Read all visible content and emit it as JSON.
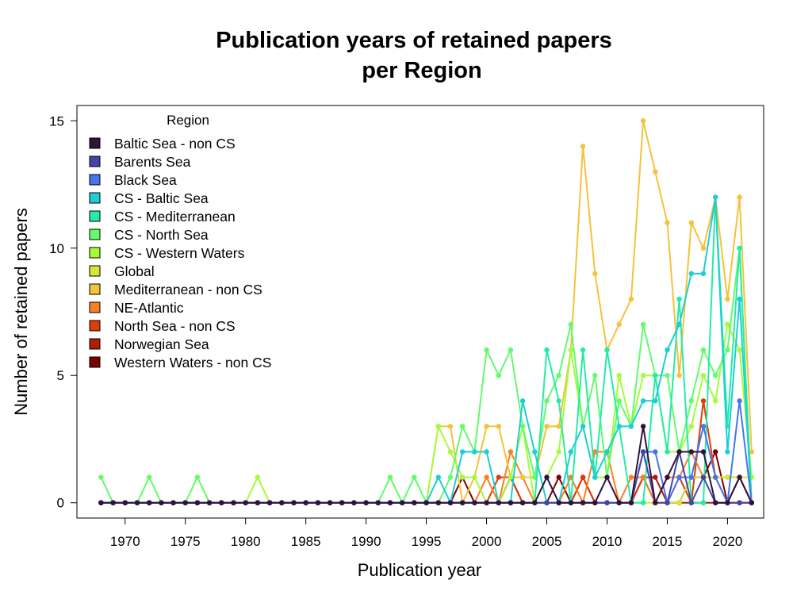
{
  "chart_data": {
    "type": "line",
    "title_lines": [
      "Publication years of retained papers",
      "per Region"
    ],
    "xlabel": "Publication year",
    "ylabel": "Number of retained papers",
    "xlim": [
      1966,
      2023
    ],
    "ylim": [
      -0.6,
      15.6
    ],
    "x_ticks": [
      1970,
      1975,
      1980,
      1985,
      1990,
      1995,
      2000,
      2005,
      2010,
      2015,
      2020
    ],
    "y_ticks": [
      0,
      5,
      10,
      15
    ],
    "grid": false,
    "legend": {
      "title": "Region",
      "position": "top-left"
    },
    "x": [
      1968,
      1969,
      1970,
      1971,
      1972,
      1973,
      1974,
      1975,
      1976,
      1977,
      1978,
      1979,
      1980,
      1981,
      1982,
      1983,
      1984,
      1985,
      1986,
      1987,
      1988,
      1989,
      1990,
      1991,
      1992,
      1993,
      1994,
      1995,
      1996,
      1997,
      1998,
      1999,
      2000,
      2001,
      2002,
      2003,
      2004,
      2005,
      2006,
      2007,
      2008,
      2009,
      2010,
      2011,
      2012,
      2013,
      2014,
      2015,
      2016,
      2017,
      2018,
      2019,
      2020,
      2021,
      2022
    ],
    "series": [
      {
        "name": "Baltic Sea - non CS",
        "color": "#30123b",
        "values": [
          0,
          0,
          0,
          0,
          0,
          0,
          0,
          0,
          0,
          0,
          0,
          0,
          0,
          0,
          0,
          0,
          0,
          0,
          0,
          0,
          0,
          0,
          0,
          0,
          0,
          0,
          0,
          0,
          0,
          0,
          0,
          0,
          0,
          0,
          0,
          0,
          0,
          1,
          0,
          0,
          0,
          0,
          1,
          0,
          0,
          3,
          0,
          1,
          2,
          2,
          2,
          0,
          0,
          1,
          0
        ]
      },
      {
        "name": "Barents Sea",
        "color": "#4145ab",
        "values": [
          0,
          0,
          0,
          0,
          0,
          0,
          0,
          0,
          0,
          0,
          0,
          0,
          0,
          0,
          0,
          0,
          0,
          0,
          0,
          0,
          0,
          0,
          0,
          0,
          0,
          0,
          0,
          0,
          0,
          0,
          0,
          0,
          0,
          0,
          0,
          0,
          0,
          0,
          0,
          0,
          0,
          0,
          0,
          0,
          0,
          2,
          0,
          0,
          2,
          0,
          1,
          0,
          0,
          0,
          0
        ]
      },
      {
        "name": "Black Sea",
        "color": "#4675ed",
        "values": [
          0,
          0,
          0,
          0,
          0,
          0,
          0,
          0,
          0,
          0,
          0,
          0,
          0,
          0,
          0,
          0,
          0,
          0,
          0,
          0,
          0,
          0,
          0,
          0,
          0,
          0,
          0,
          0,
          0,
          0,
          0,
          0,
          0,
          0,
          0,
          0,
          0,
          0,
          0,
          0,
          0,
          0,
          0,
          0,
          0,
          2,
          2,
          0,
          1,
          1,
          3,
          1,
          0,
          4,
          0
        ]
      },
      {
        "name": "CS - Baltic Sea",
        "color": "#1bcfd4",
        "values": [
          0,
          0,
          0,
          0,
          0,
          0,
          0,
          0,
          0,
          0,
          0,
          0,
          0,
          0,
          0,
          0,
          0,
          0,
          0,
          0,
          0,
          0,
          0,
          0,
          0,
          0,
          0,
          0,
          1,
          0,
          2,
          2,
          2,
          0,
          0,
          4,
          2,
          0,
          0,
          2,
          3,
          1,
          2,
          3,
          3,
          4,
          4,
          6,
          7,
          9,
          9,
          12,
          2,
          8,
          0
        ]
      },
      {
        "name": "CS - Mediterranean",
        "color": "#24eca6",
        "values": [
          0,
          0,
          0,
          0,
          0,
          0,
          0,
          0,
          0,
          0,
          0,
          0,
          0,
          0,
          0,
          0,
          0,
          0,
          0,
          0,
          0,
          0,
          0,
          0,
          0,
          0,
          0,
          0,
          0,
          0,
          0,
          0,
          0,
          0,
          0,
          0,
          0,
          6,
          4,
          0,
          6,
          1,
          6,
          3,
          0,
          0,
          5,
          2,
          8,
          0,
          0,
          12,
          3,
          10,
          0
        ]
      },
      {
        "name": "CS - North Sea",
        "color": "#61fc6c",
        "values": [
          1,
          0,
          0,
          0,
          1,
          0,
          0,
          0,
          1,
          0,
          0,
          0,
          0,
          0,
          0,
          0,
          0,
          0,
          0,
          0,
          0,
          0,
          0,
          0,
          1,
          0,
          1,
          0,
          0,
          1,
          3,
          2,
          6,
          5,
          6,
          3,
          1,
          4,
          5,
          7,
          3,
          5,
          1,
          4,
          3,
          7,
          5,
          5,
          2,
          4,
          6,
          5,
          6,
          10,
          0
        ]
      },
      {
        "name": "CS - Western Waters",
        "color": "#a4fc3b",
        "values": [
          0,
          0,
          0,
          0,
          0,
          0,
          0,
          0,
          0,
          0,
          0,
          0,
          0,
          1,
          0,
          0,
          0,
          0,
          0,
          0,
          0,
          0,
          0,
          0,
          0,
          0,
          0,
          0,
          3,
          2,
          1,
          1,
          0,
          0,
          1,
          3,
          0,
          1,
          2,
          6,
          3,
          1,
          1,
          5,
          3,
          5,
          5,
          2,
          2,
          3,
          5,
          4,
          7,
          6,
          1
        ]
      },
      {
        "name": "Global",
        "color": "#d1e834",
        "values": [
          0,
          0,
          0,
          0,
          0,
          0,
          0,
          0,
          0,
          0,
          0,
          0,
          0,
          0,
          0,
          0,
          0,
          0,
          0,
          0,
          0,
          0,
          0,
          0,
          0,
          0,
          0,
          0,
          0,
          0,
          0,
          0,
          0,
          0,
          0,
          0,
          0,
          0,
          0,
          0,
          0,
          0,
          0,
          0,
          0,
          0,
          0,
          0,
          0,
          1,
          1,
          1,
          1,
          1,
          1
        ]
      },
      {
        "name": "Mediterranean - non CS",
        "color": "#f6c23a",
        "values": [
          0,
          0,
          0,
          0,
          0,
          0,
          0,
          0,
          0,
          0,
          0,
          0,
          0,
          0,
          0,
          0,
          0,
          0,
          0,
          0,
          0,
          0,
          0,
          0,
          0,
          0,
          0,
          0,
          3,
          3,
          0,
          1,
          3,
          3,
          1,
          1,
          1,
          3,
          3,
          6,
          14,
          9,
          6,
          7,
          8,
          15,
          13,
          11,
          5,
          11,
          10,
          12,
          8,
          12,
          2
        ]
      },
      {
        "name": "NE-Atlantic",
        "color": "#fb8022",
        "values": [
          0,
          0,
          0,
          0,
          0,
          0,
          0,
          0,
          0,
          0,
          0,
          0,
          0,
          0,
          0,
          0,
          0,
          0,
          0,
          0,
          0,
          0,
          0,
          0,
          0,
          0,
          0,
          0,
          0,
          0,
          0,
          0,
          1,
          0,
          2,
          1,
          0,
          0,
          0,
          1,
          0,
          2,
          2,
          0,
          1,
          1,
          0,
          1,
          1,
          2,
          1,
          1,
          1,
          1,
          0
        ]
      },
      {
        "name": "North Sea - non CS",
        "color": "#dd3d08",
        "values": [
          0,
          0,
          0,
          0,
          0,
          0,
          0,
          0,
          0,
          0,
          0,
          0,
          0,
          0,
          0,
          0,
          0,
          0,
          0,
          0,
          0,
          0,
          0,
          0,
          0,
          0,
          0,
          0,
          0,
          0,
          0,
          0,
          0,
          1,
          1,
          0,
          0,
          0,
          0,
          0,
          1,
          0,
          0,
          0,
          0,
          1,
          0,
          0,
          1,
          0,
          4,
          1,
          0,
          0,
          0
        ]
      },
      {
        "name": "Norwegian Sea",
        "color": "#b21c05",
        "values": [
          0,
          0,
          0,
          0,
          0,
          0,
          0,
          0,
          0,
          0,
          0,
          0,
          0,
          0,
          0,
          0,
          0,
          0,
          0,
          0,
          0,
          0,
          0,
          0,
          0,
          0,
          0,
          0,
          0,
          0,
          0,
          0,
          0,
          0,
          1,
          0,
          0,
          0,
          0,
          0,
          0,
          0,
          0,
          0,
          0,
          1,
          1,
          0,
          0,
          0,
          0,
          0,
          0,
          0,
          0
        ]
      },
      {
        "name": "Western Waters - non CS",
        "color": "#7a0403",
        "values": [
          0,
          0,
          0,
          0,
          0,
          0,
          0,
          0,
          0,
          0,
          0,
          0,
          0,
          0,
          0,
          0,
          0,
          0,
          0,
          0,
          0,
          0,
          0,
          0,
          0,
          0,
          0,
          0,
          0,
          0,
          1,
          0,
          0,
          0,
          1,
          0,
          0,
          0,
          1,
          0,
          1,
          0,
          0,
          0,
          0,
          1,
          0,
          0,
          0,
          1,
          1,
          2,
          0,
          1,
          0
        ]
      }
    ]
  }
}
